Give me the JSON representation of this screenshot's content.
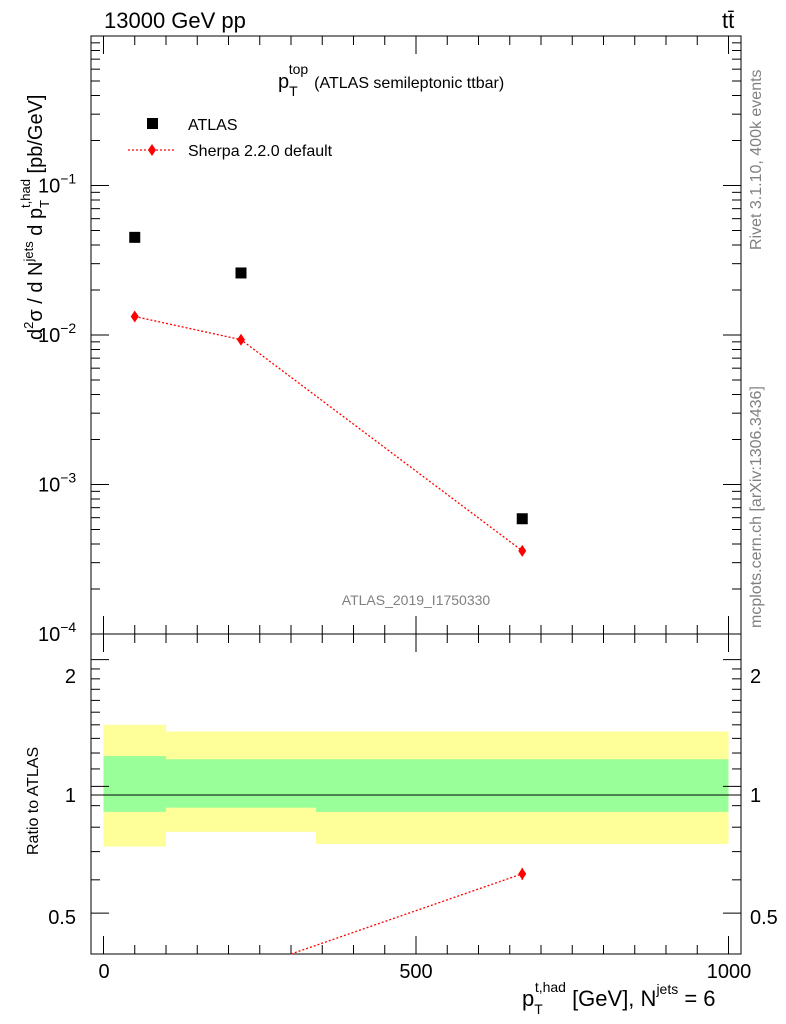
{
  "header": {
    "left": "13000 GeV pp",
    "right": "tt̄"
  },
  "side_labels": {
    "rivet": "Rivet 3.1.10,  400k events",
    "mcplots": "mcplots.cern.ch [arXiv:1306.3436]"
  },
  "main_plot": {
    "title_sym": "p",
    "title_sub": "T",
    "title_sup": "top",
    "title_rest": "(ATLAS semileptonic ttbar)",
    "analysis_id": "ATLAS_2019_I1750330",
    "ylabel": "d²σ / d N^jets d p_T^t,had [pb/GeV]",
    "ylabel_parts": {
      "a": "d",
      "a_sup": "2",
      "b": "σ / d N",
      "b_sup": "jets",
      "c": " d p",
      "c_sub": "T",
      "c_sup": "t,had",
      "d": " [pb/GeV]"
    },
    "y_ticks": [
      {
        "base": "10",
        "exp": "−1",
        "value": 0.1
      },
      {
        "base": "10",
        "exp": "−2",
        "value": 0.01
      },
      {
        "base": "10",
        "exp": "−3",
        "value": 0.001
      },
      {
        "base": "10",
        "exp": "−4",
        "value": 0.0001
      }
    ],
    "legend": [
      {
        "label": "ATLAS",
        "marker": "square",
        "color": "#000000"
      },
      {
        "label": "Sherpa 2.2.0 default",
        "marker": "diamond",
        "color": "#ff0000"
      }
    ]
  },
  "ratio_plot": {
    "ylabel": "Ratio to ATLAS",
    "y_ticks": [
      "2",
      "1",
      "0.5"
    ]
  },
  "x_axis": {
    "ticks": [
      "0",
      "500",
      "1000"
    ],
    "label_sym": "p",
    "label_sub": "T",
    "label_sup": "t,had",
    "label_mid": " [GeV], N",
    "label_sup2": "jets",
    "label_end": " = 6"
  },
  "chart_data": {
    "type": "scatter",
    "xlim": [
      -20,
      1020
    ],
    "ylim": [
      0.0001,
      1
    ],
    "yscale": "log",
    "series": [
      {
        "name": "ATLAS",
        "color": "#000000",
        "marker": "square",
        "points": [
          {
            "x": 50,
            "y": 0.045
          },
          {
            "x": 220,
            "y": 0.026
          },
          {
            "x": 670,
            "y": 0.00059
          }
        ]
      },
      {
        "name": "Sherpa 2.2.0 default",
        "color": "#ff0000",
        "marker": "diamond",
        "line": "dotted",
        "points": [
          {
            "x": 50,
            "y": 0.0133
          },
          {
            "x": 220,
            "y": 0.0093
          },
          {
            "x": 670,
            "y": 0.00036
          }
        ]
      }
    ],
    "ratio": {
      "ylim": [
        0.4,
        2.3
      ],
      "yscale": "log",
      "reference": 1.0,
      "bands": [
        {
          "x": [
            0,
            100
          ],
          "yellow": [
            0.72,
            1.4
          ],
          "green": [
            0.87,
            1.18
          ]
        },
        {
          "x": [
            100,
            340
          ],
          "yellow": [
            0.78,
            1.35
          ],
          "green": [
            0.89,
            1.16
          ]
        },
        {
          "x": [
            340,
            1000
          ],
          "yellow": [
            0.73,
            1.35
          ],
          "green": [
            0.87,
            1.16
          ]
        }
      ],
      "band_colors": {
        "yellow": "#ffff99",
        "green": "#99ff99"
      },
      "sherpa_points": [
        {
          "x": 670,
          "y": 0.62,
          "err": 0.02
        }
      ],
      "sherpa_line": [
        {
          "x": 300,
          "y": 0.4
        },
        {
          "x": 670,
          "y": 0.62
        }
      ]
    }
  }
}
